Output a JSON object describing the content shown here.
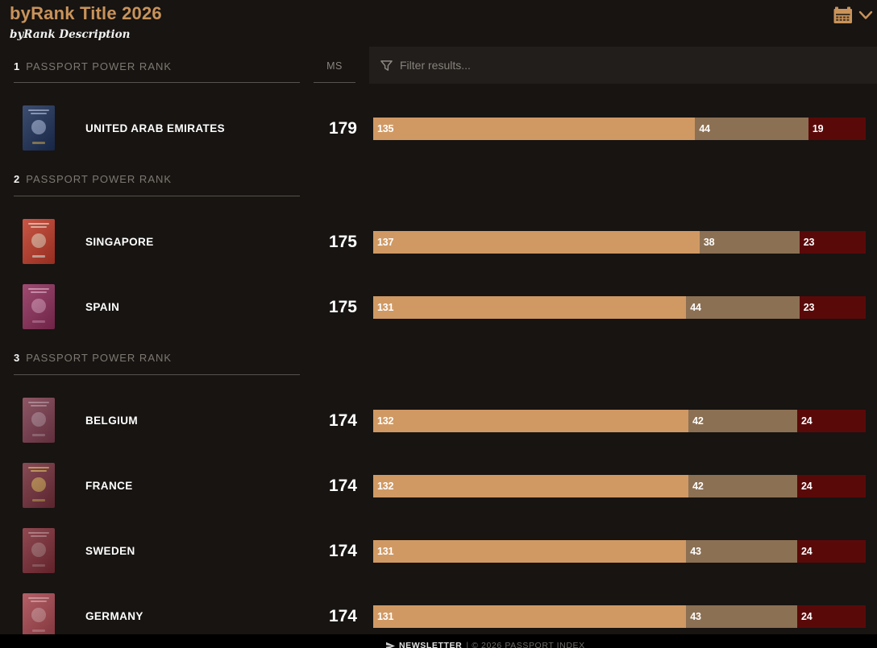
{
  "header": {
    "title": "byRank Title 2026",
    "description": "byRank Description"
  },
  "columns": {
    "ms_label": "MS",
    "filter_placeholder": "Filter results..."
  },
  "colors": {
    "accent": "#c9935a",
    "background": "#171412",
    "filter_panel": "#211e1c",
    "section_line": "#57534d",
    "bar_segments": [
      "#d09964",
      "#8c7053",
      "#5a0909"
    ],
    "footer_background": "#000000"
  },
  "sections": [
    {
      "rank": "1",
      "label": "PASSPORT POWER RANK",
      "rows": [
        {
          "country": "UNITED ARAB EMIRATES",
          "ms": "179",
          "segments": [
            135,
            44,
            19
          ],
          "passport": {
            "bg": "#1d3058",
            "detail": "#93a3c6",
            "emblem": "#8fa0c4",
            "accent": "#b79a56"
          }
        }
      ]
    },
    {
      "rank": "2",
      "label": "PASSPORT POWER RANK",
      "rows": [
        {
          "country": "SINGAPORE",
          "ms": "175",
          "segments": [
            137,
            38,
            23
          ],
          "passport": {
            "bg": "#bf3a28",
            "detail": "#f0c3ae",
            "emblem": "#e3b49e",
            "accent": "#e4ddcf"
          }
        },
        {
          "country": "SPAIN",
          "ms": "175",
          "segments": [
            131,
            44,
            23
          ],
          "passport": {
            "bg": "#8e2d5a",
            "detail": "#d795b5",
            "emblem": "#c87fa4",
            "accent": "#c4789e"
          }
        }
      ]
    },
    {
      "rank": "3",
      "label": "PASSPORT POWER RANK",
      "rows": [
        {
          "country": "BELGIUM",
          "ms": "174",
          "segments": [
            132,
            42,
            24
          ],
          "passport": {
            "bg": "#7b3b4d",
            "detail": "#b08795",
            "emblem": "#a87d8c",
            "accent": "#a87d8c"
          }
        },
        {
          "country": "FRANCE",
          "ms": "174",
          "segments": [
            132,
            42,
            24
          ],
          "passport": {
            "bg": "#732e3a",
            "detail": "#cfa254",
            "emblem": "#c59a50",
            "accent": "#b9924e"
          }
        },
        {
          "country": "SWEDEN",
          "ms": "174",
          "segments": [
            131,
            43,
            24
          ],
          "passport": {
            "bg": "#7d2b35",
            "detail": "#b27c80",
            "emblem": "#a06b70",
            "accent": "#a06b70"
          }
        },
        {
          "country": "GERMANY",
          "ms": "174",
          "segments": [
            131,
            43,
            24
          ],
          "passport": {
            "bg": "#a7454e",
            "detail": "#d8989c",
            "emblem": "#c8878c",
            "accent": "#c8878c"
          }
        }
      ]
    }
  ],
  "footer": {
    "newsletter_label": "NEWSLETTER",
    "copyright": "| © 2026 PASSPORT INDEX"
  },
  "chart_data": {
    "type": "bar",
    "stacked": true,
    "orientation": "horizontal",
    "categories": [
      "UNITED ARAB EMIRATES",
      "SINGAPORE",
      "SPAIN",
      "BELGIUM",
      "FRANCE",
      "SWEDEN",
      "GERMANY"
    ],
    "series": [
      {
        "name": "segment-1-tan",
        "values": [
          135,
          137,
          131,
          132,
          132,
          131,
          131
        ]
      },
      {
        "name": "segment-2-brown",
        "values": [
          44,
          38,
          44,
          42,
          42,
          43,
          43
        ]
      },
      {
        "name": "segment-3-dark-red",
        "values": [
          19,
          23,
          23,
          24,
          24,
          24,
          24
        ]
      }
    ],
    "row_total": 198,
    "ms_scores": [
      179,
      175,
      175,
      174,
      174,
      174,
      174
    ],
    "segment_colors": [
      "#d09964",
      "#8c7053",
      "#5a0909"
    ]
  }
}
